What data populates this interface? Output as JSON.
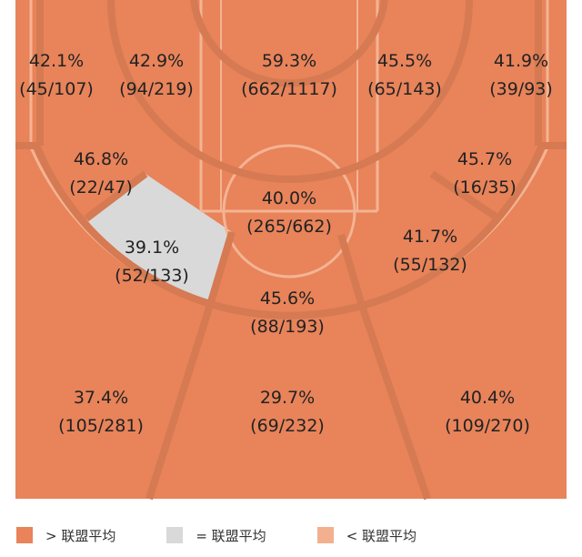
{
  "colors": {
    "above": "#E8835A",
    "equal": "#D9D9D9",
    "below": "#F2B08F",
    "line": "#D57A52",
    "line_light": "#F4B493"
  },
  "chart_data": {
    "type": "heatmap",
    "zones": [
      {
        "id": "left-corner-3",
        "pct": "42.1%",
        "made_att": "(45/107)",
        "status": "above"
      },
      {
        "id": "left-mid-upper",
        "pct": "42.9%",
        "made_att": "(94/219)",
        "status": "above"
      },
      {
        "id": "paint",
        "pct": "59.3%",
        "made_att": "(662/1117)",
        "status": "above"
      },
      {
        "id": "right-mid-upper",
        "pct": "45.5%",
        "made_att": "(65/143)",
        "status": "above"
      },
      {
        "id": "right-corner-3",
        "pct": "41.9%",
        "made_att": "(39/93)",
        "status": "above"
      },
      {
        "id": "left-baseline-mid",
        "pct": "46.8%",
        "made_att": "(22/47)",
        "status": "above"
      },
      {
        "id": "right-baseline-mid",
        "pct": "45.7%",
        "made_att": "(16/35)",
        "status": "above"
      },
      {
        "id": "free-throw-mid",
        "pct": "40.0%",
        "made_att": "(265/662)",
        "status": "above"
      },
      {
        "id": "left-wing-mid",
        "pct": "39.1%",
        "made_att": "(52/133)",
        "status": "equal"
      },
      {
        "id": "right-wing-mid",
        "pct": "41.7%",
        "made_att": "(55/132)",
        "status": "above"
      },
      {
        "id": "top-key-mid",
        "pct": "45.6%",
        "made_att": "(88/193)",
        "status": "above"
      },
      {
        "id": "left-wing-3",
        "pct": "37.4%",
        "made_att": "(105/281)",
        "status": "above"
      },
      {
        "id": "top-3",
        "pct": "29.7%",
        "made_att": "(69/232)",
        "status": "above"
      },
      {
        "id": "right-wing-3",
        "pct": "40.4%",
        "made_att": "(109/270)",
        "status": "above"
      }
    ]
  },
  "legend": {
    "above": "> 联盟平均",
    "equal": "= 联盟平均",
    "below": "< 联盟平均"
  }
}
